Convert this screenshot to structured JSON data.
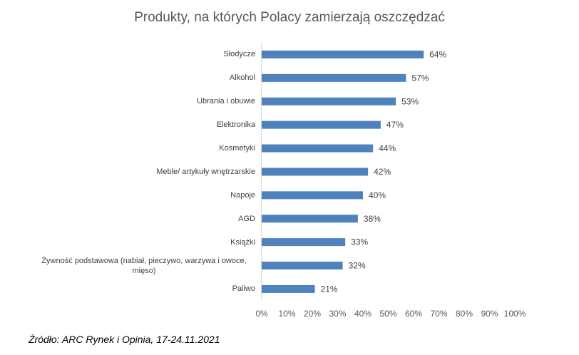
{
  "chart_data": {
    "type": "bar",
    "orientation": "horizontal",
    "title": "Produkty, na których Polacy zamierzają oszczędzać",
    "categories": [
      "Słodycze",
      "Alkohol",
      "Ubrania i obuwie",
      "Elektronika",
      "Kosmetyki",
      "Meble/ artykuły wnętrzarskie",
      "Napoje",
      "AGD",
      "Książki",
      "Żywność podstawowa (nabiał, pieczywo, warzywa i owoce, mięso)",
      "Paliwo"
    ],
    "values": [
      64,
      57,
      53,
      47,
      44,
      42,
      40,
      38,
      33,
      32,
      21
    ],
    "data_labels": [
      "64%",
      "57%",
      "53%",
      "47%",
      "44%",
      "42%",
      "40%",
      "38%",
      "33%",
      "32%",
      "21%"
    ],
    "xlim": [
      0,
      100
    ],
    "xticks": [
      "0%",
      "10%",
      "20%",
      "30%",
      "40%",
      "50%",
      "60%",
      "70%",
      "80%",
      "90%",
      "100%"
    ],
    "xlabel": "",
    "ylabel": "",
    "grid": false,
    "bar_color": "#4f81bd"
  },
  "source": "Źródło: ARC Rynek i Opinia, 17-24.11.2021"
}
